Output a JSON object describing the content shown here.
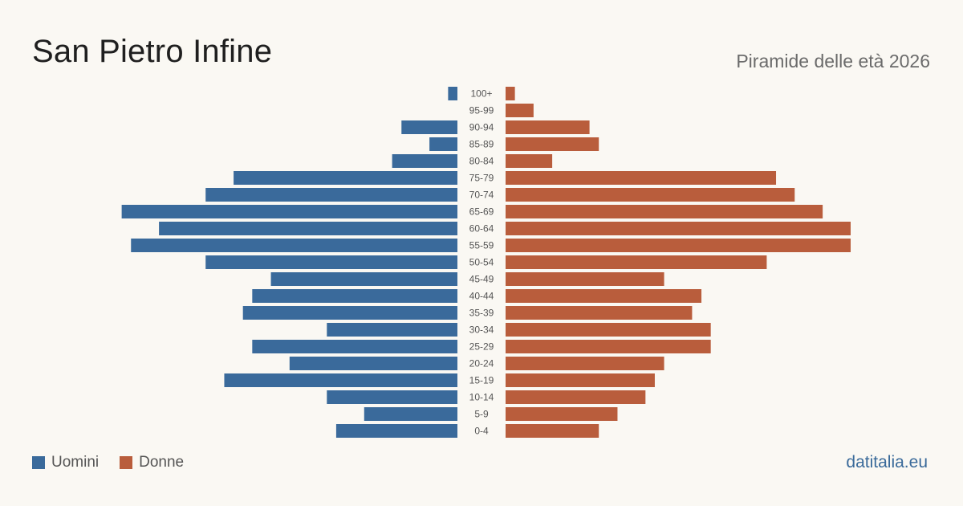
{
  "title": "San Pietro Infine",
  "subtitle": "Piramide delle età 2026",
  "brand": "datitalia.eu",
  "colors": {
    "male": "#3a6a9b",
    "female": "#b95d3c",
    "background": "#faf8f3"
  },
  "legend": [
    {
      "label": "Uomini",
      "color": "#3a6a9b"
    },
    {
      "label": "Donne",
      "color": "#b95d3c"
    }
  ],
  "chart_data": {
    "type": "bar",
    "orientation": "horizontal-pyramid",
    "categories": [
      "100+",
      "95-99",
      "90-94",
      "85-89",
      "80-84",
      "75-79",
      "70-74",
      "65-69",
      "60-64",
      "55-59",
      "50-54",
      "45-49",
      "40-44",
      "35-39",
      "30-34",
      "25-29",
      "20-24",
      "15-19",
      "10-14",
      "5-9",
      "0-4"
    ],
    "series": [
      {
        "name": "Uomini",
        "values": [
          1,
          0,
          6,
          3,
          7,
          24,
          27,
          36,
          32,
          35,
          27,
          20,
          22,
          23,
          14,
          22,
          18,
          25,
          14,
          10,
          13
        ]
      },
      {
        "name": "Donne",
        "values": [
          1,
          3,
          9,
          10,
          5,
          29,
          31,
          34,
          37,
          37,
          28,
          17,
          21,
          20,
          22,
          22,
          17,
          16,
          15,
          12,
          10
        ]
      }
    ],
    "xlim": [
      0,
      37
    ],
    "grid": false,
    "legend_position": "bottom-left"
  }
}
